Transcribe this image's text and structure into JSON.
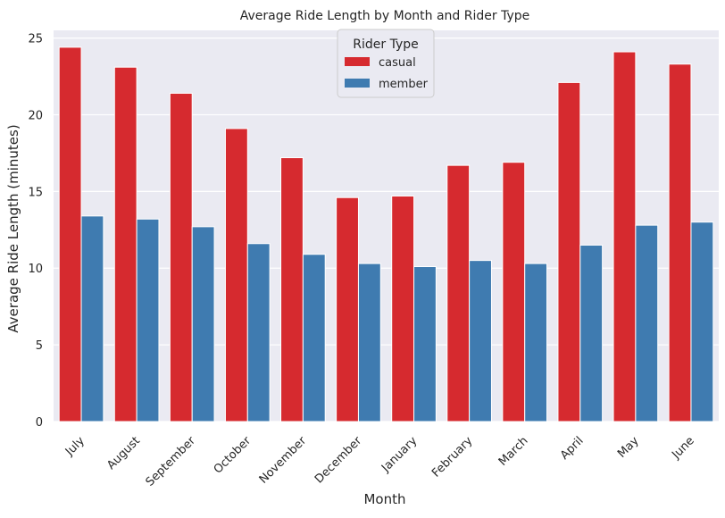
{
  "chart_data": {
    "type": "bar",
    "title": "Average Ride Length by Month and Rider Type",
    "xlabel": "Month",
    "ylabel": "Average Ride Length (minutes)",
    "categories": [
      "July",
      "August",
      "September",
      "October",
      "November",
      "December",
      "January",
      "February",
      "March",
      "April",
      "May",
      "June"
    ],
    "series": [
      {
        "name": "casual",
        "color": "#d62a2f",
        "values": [
          24.4,
          23.1,
          21.4,
          19.1,
          17.2,
          14.6,
          14.7,
          16.7,
          16.9,
          22.1,
          24.1,
          23.3
        ]
      },
      {
        "name": "member",
        "color": "#3f7bb0",
        "values": [
          13.4,
          13.2,
          12.7,
          11.6,
          10.9,
          10.3,
          10.1,
          10.5,
          10.3,
          11.5,
          12.8,
          13.0
        ]
      }
    ],
    "ylim": [
      0,
      25.5
    ],
    "yticks": [
      0,
      5,
      10,
      15,
      20,
      25
    ],
    "grid": true,
    "legend": {
      "title": "Rider Type",
      "position": "top-center"
    }
  }
}
